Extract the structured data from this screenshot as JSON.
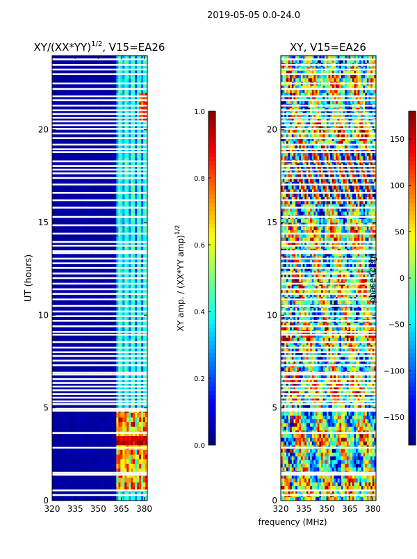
{
  "figure_title": "2019-05-05 0.0-24.0",
  "shared_xlabel": "frequency (MHz)",
  "colormap": [
    "#00007f",
    "#0000ff",
    "#007fff",
    "#00ffff",
    "#7fff7f",
    "#ffff00",
    "#ff7f00",
    "#ff0000",
    "#7f0000"
  ],
  "blank_color": "#ffffff",
  "chart_data": [
    {
      "type": "heatmap",
      "title_main": "XY/(XX*YY)",
      "title_sup": "1/2",
      "title_tail": ", V15=EA26",
      "xlabel": "frequency (MHz)",
      "ylabel": "UT (hours)",
      "xlim": [
        320,
        382
      ],
      "ylim": [
        0,
        24
      ],
      "xticks": [
        320,
        335,
        350,
        365,
        380
      ],
      "yticks": [
        0,
        5,
        10,
        15,
        20
      ],
      "bright_band_mhz": [
        362,
        382
      ],
      "colorbar": {
        "label_main": "XY amp. / (XX*YY amp)",
        "label_sup": "1/2",
        "range": [
          0.0,
          1.0
        ],
        "ticks": [
          "0.0",
          "0.2",
          "0.4",
          "0.6",
          "0.8",
          "1.0"
        ]
      }
    },
    {
      "type": "heatmap",
      "title": "XY, V15=EA26",
      "xlabel": "frequency (MHz)",
      "xlim": [
        320,
        382
      ],
      "ylim": [
        0,
        24
      ],
      "xticks": [
        320,
        335,
        350,
        365,
        380
      ],
      "yticks": [
        0,
        5,
        10,
        15,
        20
      ],
      "colorbar": {
        "label": "phase (deg)",
        "range": [
          -180,
          180
        ],
        "ticks": [
          "−150",
          "−100",
          "−50",
          "0",
          "50",
          "100",
          "150"
        ]
      }
    }
  ],
  "flagged_ut_hours": [
    0.3,
    0.55,
    1.4,
    1.5,
    2.85,
    3.65,
    4.85,
    4.95,
    5.2,
    5.35,
    5.55,
    5.75,
    5.95,
    6.15,
    6.35,
    6.55,
    6.8,
    6.9,
    7.3,
    7.55,
    7.8,
    8.0,
    8.25,
    8.55,
    8.95,
    9.1,
    9.4,
    9.7,
    9.95,
    10.2,
    10.5,
    10.85,
    11.15,
    11.4,
    11.7,
    12.0,
    12.25,
    12.55,
    12.8,
    13.05,
    13.35,
    13.45,
    13.75,
    13.95,
    14.4,
    14.85,
    15.3,
    15.8,
    16.2,
    16.6,
    17.05,
    17.4,
    17.65,
    17.85,
    18.05,
    18.3,
    18.8,
    18.95,
    19.2,
    19.55,
    19.8,
    20.05,
    20.25,
    20.45,
    20.65,
    20.85,
    21.05,
    21.3,
    21.6,
    21.8,
    22.2,
    22.5,
    23.0,
    23.25,
    23.5,
    23.8
  ]
}
